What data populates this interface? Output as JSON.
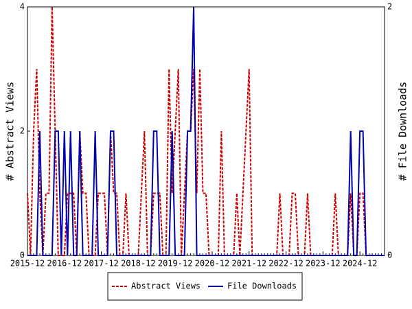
{
  "chart_data": {
    "type": "line",
    "categories": [
      "2015-12",
      null,
      null,
      null,
      null,
      null,
      null,
      null,
      null,
      null,
      null,
      null,
      "2016-12",
      null,
      null,
      null,
      null,
      null,
      null,
      null,
      null,
      null,
      null,
      null,
      "2017-12",
      null,
      null,
      null,
      null,
      null,
      null,
      null,
      null,
      null,
      null,
      null,
      "2018-12",
      null,
      null,
      null,
      null,
      null,
      null,
      null,
      null,
      null,
      null,
      null,
      "2019-12",
      null,
      null,
      null,
      null,
      null,
      null,
      null,
      null,
      null,
      null,
      null,
      "2020-12",
      null,
      null,
      null,
      null,
      null,
      null,
      null,
      null,
      null,
      null,
      null,
      "2021-12",
      null,
      null,
      null,
      null,
      null,
      null,
      null,
      null,
      null,
      null,
      null,
      "2022-12",
      null,
      null,
      null,
      null,
      null,
      null,
      null,
      null,
      null,
      null,
      null,
      "2023-12",
      null,
      null,
      null,
      null,
      null,
      null,
      null,
      null,
      null,
      null,
      null,
      "2024-12",
      null,
      null,
      null,
      null,
      null,
      null,
      null,
      null
    ],
    "ylabel": "# Abstract Views",
    "y2label": "# File Downloads",
    "ylim": [
      0,
      4
    ],
    "yticks": [
      0,
      2,
      4
    ],
    "y2lim": [
      0,
      2
    ],
    "y2ticks": [
      0,
      2
    ],
    "series": [
      {
        "name": "Abstract Views",
        "color": "#cc0000",
        "dashed": true,
        "values": [
          1,
          0,
          2,
          3,
          1,
          0,
          1,
          1,
          4,
          2,
          0,
          0,
          0,
          1,
          1,
          1,
          0,
          2,
          1,
          1,
          0,
          0,
          0,
          1,
          1,
          1,
          0,
          2,
          1,
          1,
          0,
          0,
          1,
          0,
          0,
          0,
          0,
          1,
          2,
          0,
          0,
          1,
          1,
          1,
          0,
          0,
          3,
          1,
          2,
          3,
          0,
          1,
          2,
          2,
          3,
          1,
          3,
          1,
          1,
          0,
          0,
          0,
          0,
          2,
          0,
          0,
          0,
          0,
          1,
          0,
          1,
          2,
          3,
          0,
          0,
          0,
          0,
          0,
          0,
          0,
          0,
          0,
          1,
          0,
          0,
          0,
          1,
          1,
          0,
          0,
          0,
          1,
          0,
          0,
          0,
          0,
          0,
          0,
          0,
          0,
          1,
          0,
          0,
          0,
          0,
          1,
          0,
          0,
          1,
          1,
          0,
          0,
          0,
          0,
          0,
          0,
          0
        ]
      },
      {
        "name": "File Downloads",
        "color": "#0000aa",
        "axis": "y2",
        "values": [
          0,
          0,
          0,
          0,
          1,
          0,
          0,
          0,
          0,
          1,
          1,
          0,
          1,
          0,
          1,
          0,
          0,
          1,
          0,
          0,
          0,
          0,
          1,
          0,
          0,
          0,
          0,
          1,
          1,
          0,
          0,
          0,
          0,
          0,
          0,
          0,
          0,
          0,
          0,
          0,
          0,
          1,
          1,
          0,
          0,
          0,
          0,
          1,
          0,
          0,
          0,
          0,
          1,
          1,
          2,
          0,
          0,
          0,
          0,
          0,
          0,
          0,
          0,
          0,
          0,
          0,
          0,
          0,
          0,
          0,
          0,
          0,
          0,
          0,
          0,
          0,
          0,
          0,
          0,
          0,
          0,
          0,
          0,
          0,
          0,
          0,
          0,
          0,
          0,
          0,
          0,
          0,
          0,
          0,
          0,
          0,
          0,
          0,
          0,
          0,
          0,
          0,
          0,
          0,
          0,
          1,
          0,
          0,
          1,
          1,
          0,
          0,
          0,
          0,
          0,
          0,
          0
        ]
      }
    ]
  }
}
